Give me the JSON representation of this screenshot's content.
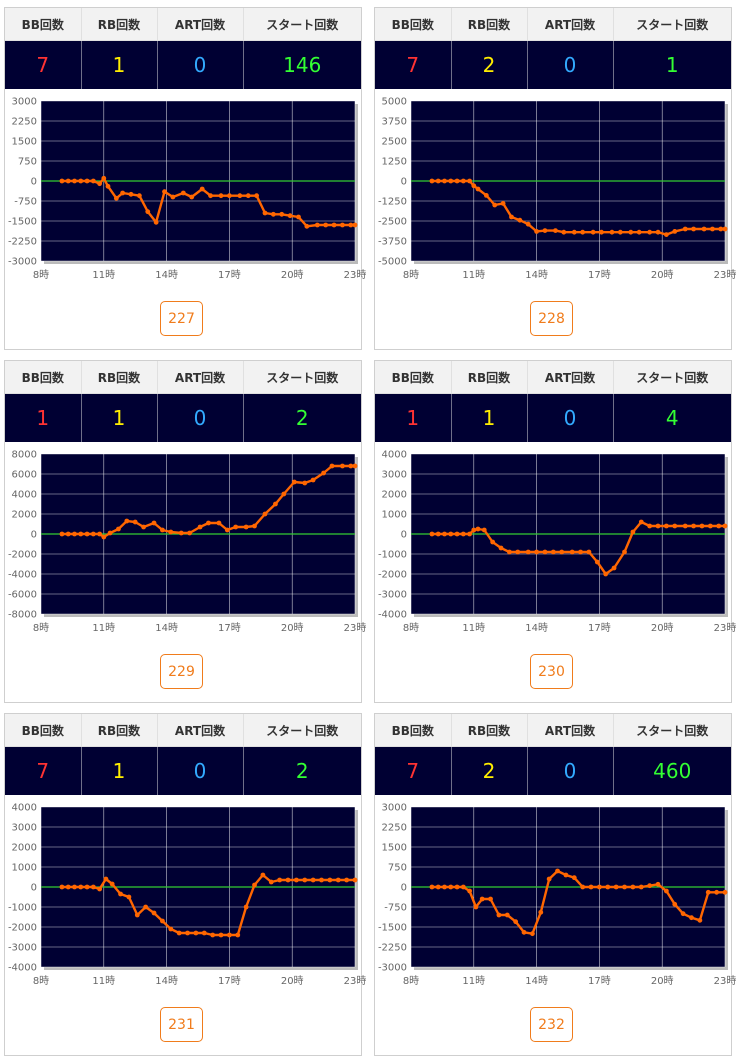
{
  "headers": {
    "bb": "BB回数",
    "rb": "RB回数",
    "art": "ART回数",
    "start": "スタート回数"
  },
  "x_tick_labels": [
    "8時",
    "11時",
    "14時",
    "17時",
    "20時",
    "23時"
  ],
  "colors": {
    "plot_bg": "#000033",
    "line": "#ff6600",
    "zero_line": "#33cc33",
    "grid": "#ffffff"
  },
  "machines": [
    {
      "number": "227",
      "bb": "7",
      "rb": "1",
      "art": "0",
      "start": "146"
    },
    {
      "number": "228",
      "bb": "7",
      "rb": "2",
      "art": "0",
      "start": "1"
    },
    {
      "number": "229",
      "bb": "1",
      "rb": "1",
      "art": "0",
      "start": "2"
    },
    {
      "number": "230",
      "bb": "1",
      "rb": "1",
      "art": "0",
      "start": "4"
    },
    {
      "number": "231",
      "bb": "7",
      "rb": "1",
      "art": "0",
      "start": "2"
    },
    {
      "number": "232",
      "bb": "7",
      "rb": "2",
      "art": "0",
      "start": "460"
    }
  ],
  "chart_data": [
    {
      "type": "line",
      "x_axis": "hour",
      "xlim": [
        8,
        23
      ],
      "ylim": [
        -3000,
        3000
      ],
      "y_ticks": [
        "3000",
        "2250",
        "1500",
        "750",
        "0",
        "-750",
        "-1500",
        "-2250",
        "-3000"
      ],
      "series": [
        {
          "x": [
            9.0,
            9.3,
            9.6,
            9.9,
            10.2,
            10.5,
            10.8,
            11.0,
            11.2,
            11.6,
            11.9,
            12.3,
            12.7,
            13.1,
            13.5,
            13.9,
            14.3,
            14.8,
            15.2,
            15.7,
            16.1,
            16.6,
            17.0,
            17.5,
            17.9,
            18.3,
            18.7,
            19.1,
            19.5,
            19.9,
            20.3,
            20.7,
            21.2,
            21.6,
            22.0,
            22.4,
            22.8,
            23.0
          ],
          "y": [
            0,
            0,
            0,
            0,
            0,
            0,
            -100,
            100,
            -200,
            -650,
            -450,
            -500,
            -550,
            -1150,
            -1550,
            -400,
            -600,
            -450,
            -600,
            -300,
            -550,
            -550,
            -550,
            -550,
            -550,
            -550,
            -1200,
            -1250,
            -1250,
            -1300,
            -1350,
            -1700,
            -1650,
            -1650,
            -1650,
            -1650,
            -1650,
            -1650
          ]
        }
      ]
    },
    {
      "type": "line",
      "x_axis": "hour",
      "xlim": [
        8,
        23
      ],
      "ylim": [
        -5000,
        5000
      ],
      "y_ticks": [
        "5000",
        "3750",
        "2500",
        "1250",
        "0",
        "-1250",
        "-2500",
        "-3750",
        "-5000"
      ],
      "series": [
        {
          "x": [
            9.0,
            9.3,
            9.6,
            9.9,
            10.2,
            10.5,
            10.8,
            11.0,
            11.2,
            11.6,
            12.0,
            12.4,
            12.8,
            13.2,
            13.6,
            14.0,
            14.4,
            14.9,
            15.3,
            15.8,
            16.2,
            16.7,
            17.1,
            17.6,
            18.0,
            18.5,
            18.9,
            19.4,
            19.8,
            20.2,
            20.6,
            21.1,
            21.5,
            22.0,
            22.4,
            22.8,
            23.0
          ],
          "y": [
            0,
            0,
            0,
            0,
            0,
            0,
            0,
            -300,
            -500,
            -900,
            -1500,
            -1400,
            -2250,
            -2450,
            -2700,
            -3150,
            -3100,
            -3100,
            -3200,
            -3200,
            -3200,
            -3200,
            -3200,
            -3200,
            -3200,
            -3200,
            -3200,
            -3200,
            -3200,
            -3350,
            -3150,
            -3000,
            -3000,
            -3000,
            -3000,
            -3000,
            -3000
          ]
        }
      ]
    },
    {
      "type": "line",
      "x_axis": "hour",
      "xlim": [
        8,
        23
      ],
      "ylim": [
        -8000,
        8000
      ],
      "y_ticks": [
        "8000",
        "6000",
        "4000",
        "2000",
        "0",
        "-2000",
        "-4000",
        "-6000",
        "-8000"
      ],
      "series": [
        {
          "x": [
            9.0,
            9.3,
            9.6,
            9.9,
            10.2,
            10.5,
            10.8,
            11.0,
            11.3,
            11.7,
            12.1,
            12.5,
            12.9,
            13.4,
            13.8,
            14.2,
            14.7,
            15.1,
            15.6,
            16.0,
            16.5,
            16.9,
            17.3,
            17.8,
            18.2,
            18.7,
            19.2,
            19.6,
            20.1,
            20.6,
            21.0,
            21.5,
            21.9,
            22.4,
            22.8,
            23.0
          ],
          "y": [
            0,
            0,
            0,
            0,
            0,
            0,
            0,
            -300,
            100,
            500,
            1300,
            1200,
            700,
            1100,
            400,
            200,
            100,
            100,
            700,
            1100,
            1100,
            400,
            700,
            700,
            800,
            2000,
            3000,
            4000,
            5200,
            5100,
            5400,
            6100,
            6800,
            6800,
            6800,
            6800
          ]
        }
      ]
    },
    {
      "type": "line",
      "x_axis": "hour",
      "xlim": [
        8,
        23
      ],
      "ylim": [
        -4000,
        4000
      ],
      "y_ticks": [
        "4000",
        "3000",
        "2000",
        "1000",
        "0",
        "-1000",
        "-2000",
        "-3000",
        "-4000"
      ],
      "series": [
        {
          "x": [
            9.0,
            9.3,
            9.6,
            9.9,
            10.2,
            10.5,
            10.8,
            11.0,
            11.2,
            11.5,
            11.9,
            12.3,
            12.7,
            13.1,
            13.6,
            14.0,
            14.4,
            14.8,
            15.2,
            15.7,
            16.1,
            16.5,
            16.9,
            17.3,
            17.7,
            18.2,
            18.6,
            19.0,
            19.4,
            19.8,
            20.2,
            20.6,
            21.1,
            21.5,
            21.9,
            22.3,
            22.7,
            23.0
          ],
          "y": [
            0,
            0,
            0,
            0,
            0,
            0,
            0,
            200,
            250,
            200,
            -400,
            -700,
            -900,
            -900,
            -900,
            -900,
            -900,
            -900,
            -900,
            -900,
            -900,
            -900,
            -1400,
            -2000,
            -1700,
            -900,
            100,
            600,
            400,
            400,
            400,
            400,
            400,
            400,
            400,
            400,
            400,
            400
          ]
        }
      ]
    },
    {
      "type": "line",
      "x_axis": "hour",
      "xlim": [
        8,
        23
      ],
      "ylim": [
        -4000,
        4000
      ],
      "y_ticks": [
        "4000",
        "3000",
        "2000",
        "1000",
        "0",
        "-1000",
        "-2000",
        "-3000",
        "-4000"
      ],
      "series": [
        {
          "x": [
            9.0,
            9.3,
            9.6,
            9.9,
            10.2,
            10.5,
            10.8,
            11.1,
            11.4,
            11.8,
            12.2,
            12.6,
            13.0,
            13.4,
            13.8,
            14.2,
            14.6,
            15.0,
            15.4,
            15.8,
            16.2,
            16.6,
            17.0,
            17.4,
            17.8,
            18.2,
            18.6,
            19.0,
            19.4,
            19.8,
            20.2,
            20.6,
            21.0,
            21.4,
            21.8,
            22.2,
            22.6,
            23.0
          ],
          "y": [
            0,
            0,
            0,
            0,
            0,
            0,
            -100,
            400,
            150,
            -350,
            -500,
            -1400,
            -1000,
            -1300,
            -1700,
            -2100,
            -2300,
            -2300,
            -2300,
            -2300,
            -2400,
            -2400,
            -2400,
            -2400,
            -1000,
            100,
            600,
            250,
            350,
            350,
            350,
            350,
            350,
            350,
            350,
            350,
            350,
            350
          ]
        }
      ]
    },
    {
      "type": "line",
      "x_axis": "hour",
      "xlim": [
        8,
        23
      ],
      "ylim": [
        -3000,
        3000
      ],
      "y_ticks": [
        "3000",
        "2250",
        "1500",
        "750",
        "0",
        "-750",
        "-1500",
        "-2250",
        "-3000"
      ],
      "series": [
        {
          "x": [
            9.0,
            9.3,
            9.6,
            9.9,
            10.2,
            10.5,
            10.8,
            11.1,
            11.4,
            11.8,
            12.2,
            12.6,
            13.0,
            13.4,
            13.8,
            14.2,
            14.6,
            15.0,
            15.4,
            15.8,
            16.2,
            16.6,
            17.0,
            17.4,
            17.8,
            18.2,
            18.6,
            19.0,
            19.4,
            19.8,
            20.2,
            20.6,
            21.0,
            21.4,
            21.8,
            22.2,
            22.6,
            23.0
          ],
          "y": [
            0,
            0,
            0,
            0,
            0,
            0,
            -150,
            -750,
            -450,
            -450,
            -1050,
            -1050,
            -1300,
            -1700,
            -1750,
            -950,
            300,
            600,
            450,
            350,
            0,
            0,
            0,
            0,
            0,
            0,
            0,
            0,
            50,
            100,
            -150,
            -650,
            -1000,
            -1150,
            -1250,
            -200,
            -200,
            -200
          ]
        }
      ]
    }
  ]
}
